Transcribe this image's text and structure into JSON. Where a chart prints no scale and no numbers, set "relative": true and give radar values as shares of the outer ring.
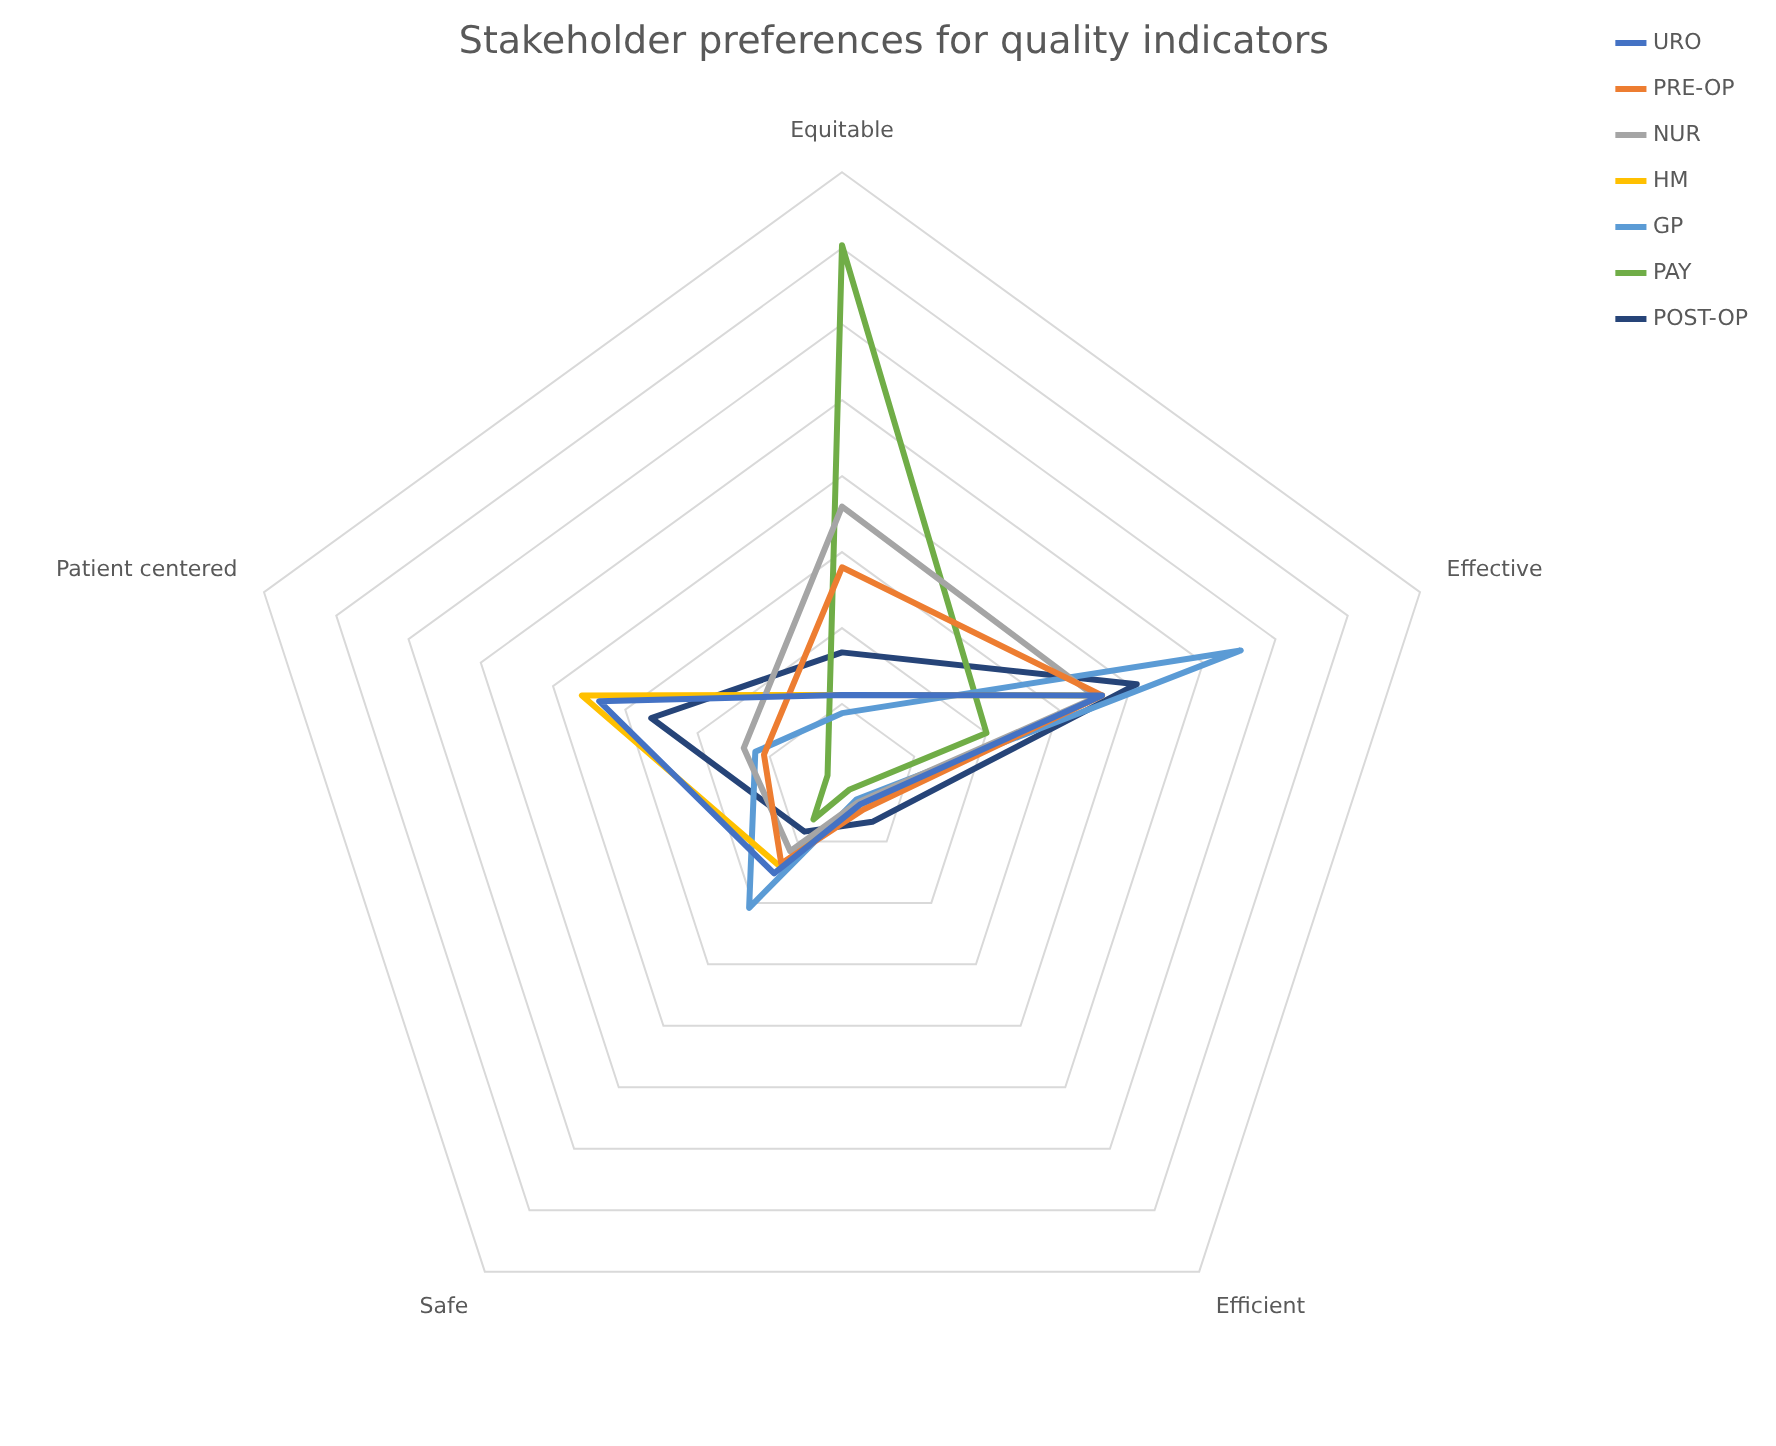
{
  "chart_data": {
    "type": "radar",
    "title": "Stakeholder preferences for quality indicators",
    "relative": true,
    "grid": true,
    "legend": "top right",
    "marker": "none",
    "line_style": "solid",
    "categories": [
      "Equitable",
      "Effective",
      "Efficient",
      "Safe",
      "Patient centered"
    ],
    "series": [
      {
        "name": "URO",
        "color": "#4472c4",
        "values": [
          0.14,
          0.45,
          0.05,
          0.19,
          0.42
        ]
      },
      {
        "name": "PRE-OP",
        "color": "#ed7d31",
        "values": [
          0.35,
          0.45,
          0.06,
          0.17,
          0.135
        ]
      },
      {
        "name": "NUR",
        "color": "#a5a5a5",
        "values": [
          0.45,
          0.44,
          0.045,
          0.145,
          0.17
        ]
      },
      {
        "name": "HM",
        "color": "#ffc000",
        "values": [
          0.14,
          0.45,
          0.05,
          0.175,
          0.45
        ]
      },
      {
        "name": "GP",
        "color": "#5b9bd5",
        "values": [
          0.11,
          0.69,
          0.04,
          0.26,
          0.15
        ]
      },
      {
        "name": "PAY",
        "color": "#70ad47",
        "values": [
          0.88,
          0.25,
          0.02,
          0.08,
          0.025
        ]
      },
      {
        "name": "POST-OP",
        "color": "#264478",
        "values": [
          0.21,
          0.51,
          0.085,
          0.105,
          0.33
        ]
      }
    ]
  }
}
